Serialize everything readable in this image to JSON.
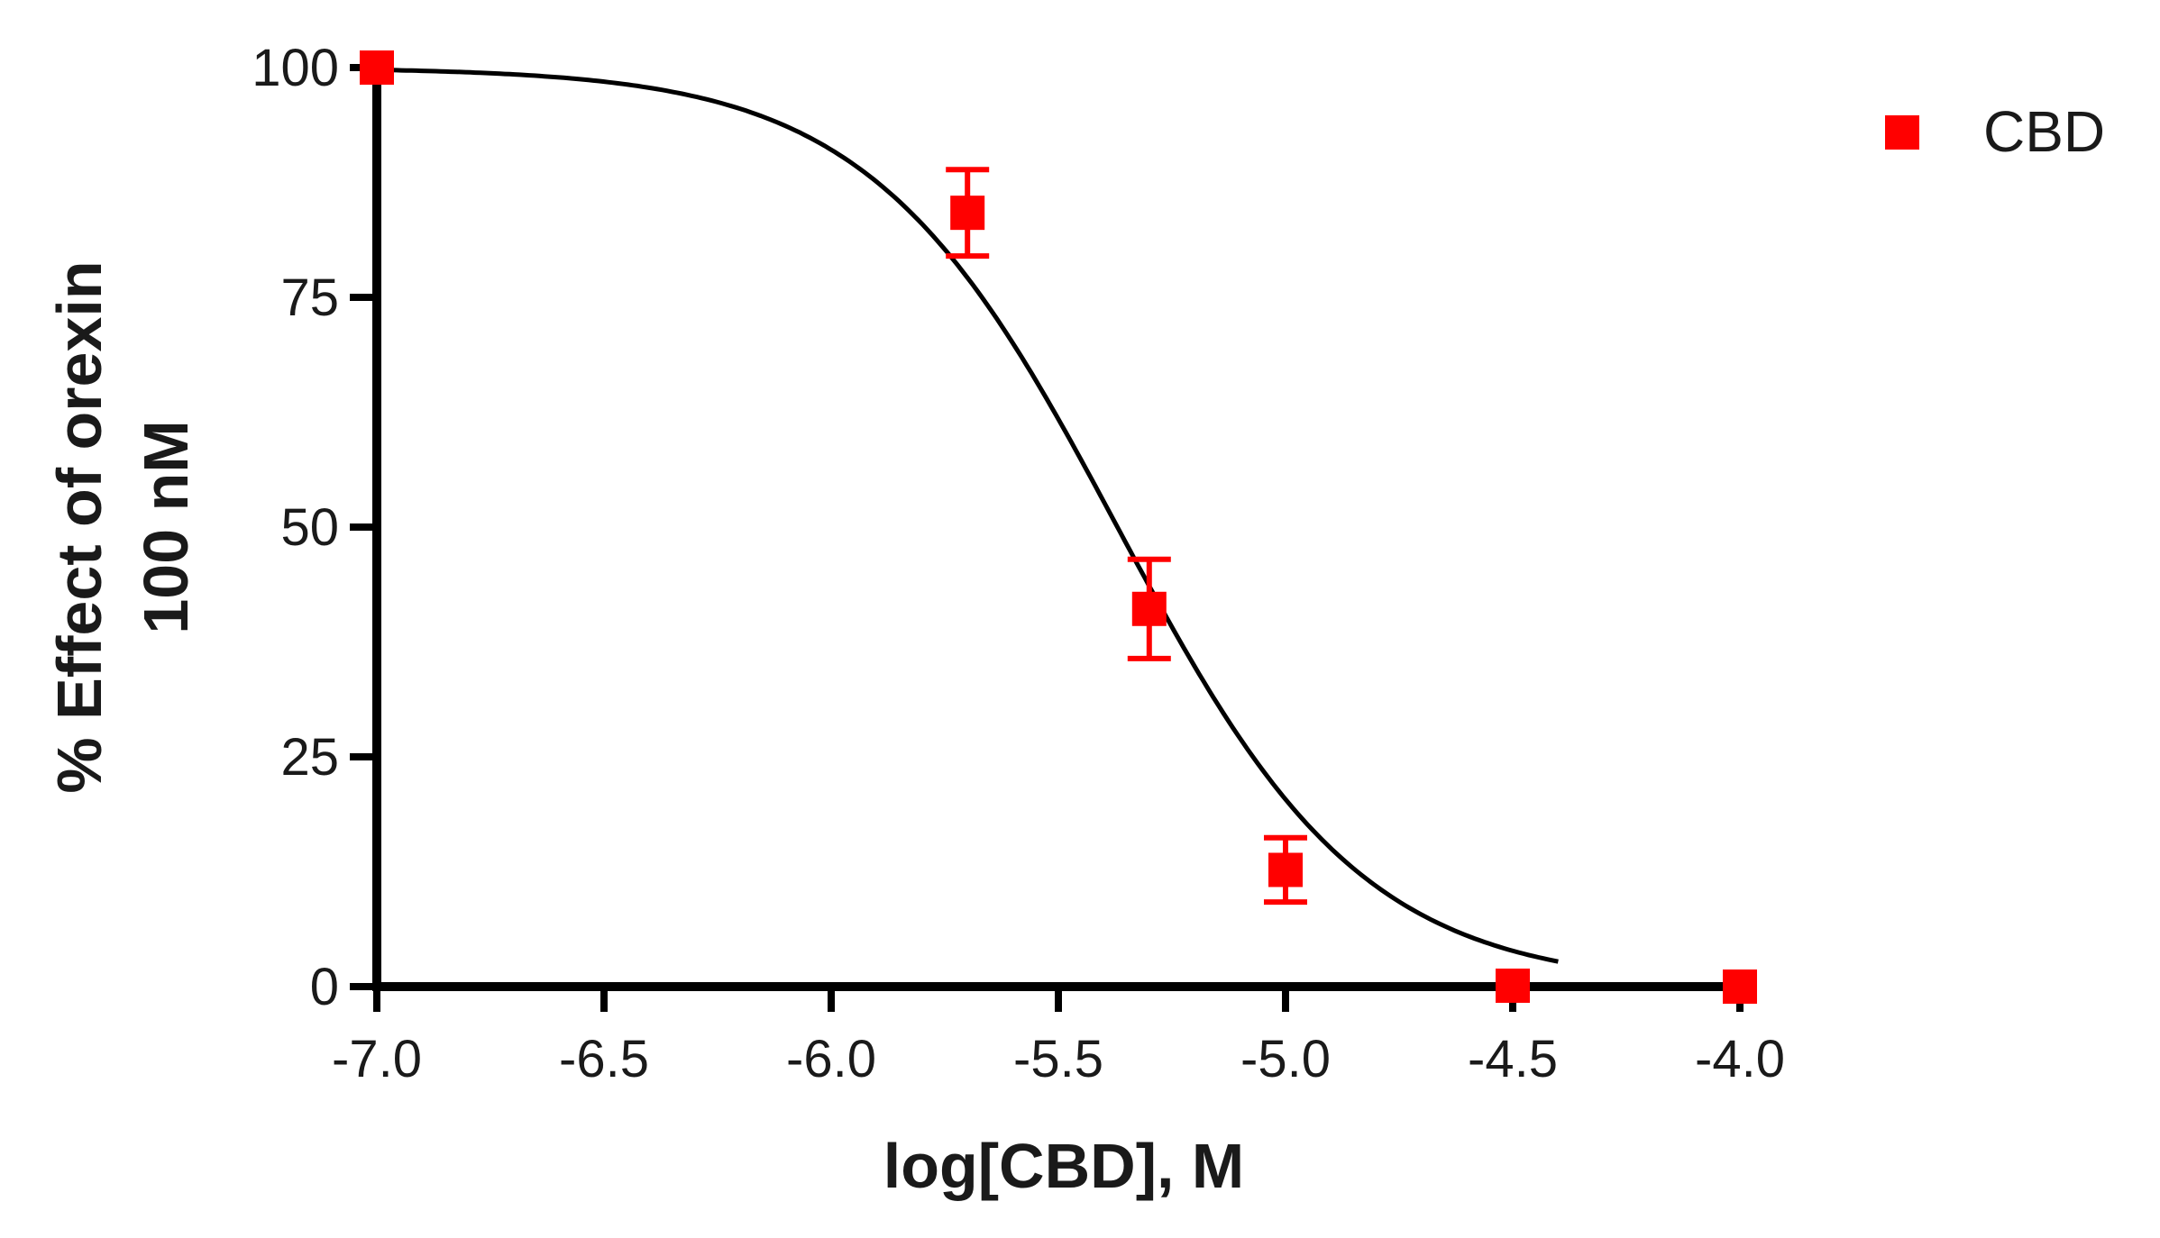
{
  "chart_data": {
    "type": "scatter",
    "xlabel": "log[CBD], M",
    "ylabel_lines": [
      "% Effect of orexin",
      "100 nM"
    ],
    "xlim": [
      -7.0,
      -4.0
    ],
    "ylim": [
      0,
      100
    ],
    "x_ticks": [
      -7.0,
      -6.5,
      -6.0,
      -5.5,
      -5.0,
      -4.5,
      -4.0
    ],
    "x_tick_labels": [
      "-7.0",
      "-6.5",
      "-6.0",
      "-5.5",
      "-5.0",
      "-4.5",
      "-4.0"
    ],
    "y_ticks": [
      0,
      25,
      50,
      75,
      100
    ],
    "y_tick_labels": [
      "0",
      "25",
      "50",
      "75",
      "100"
    ],
    "legend_position": "top-right",
    "series": [
      {
        "name": "CBD",
        "color": "#ff0000",
        "marker": "square",
        "x": [
          -7.0,
          -5.7,
          -5.3,
          -5.0,
          -4.5,
          -4.0
        ],
        "y": [
          100,
          84.2,
          41.1,
          12.7,
          0.1,
          0
        ],
        "error": [
          0,
          4.7,
          5.4,
          3.5,
          0,
          0
        ]
      }
    ],
    "fit_curve": {
      "model": "sigmoidal dose-response",
      "color": "#000000",
      "top": 100,
      "bottom": 0,
      "logIC50": -5.37,
      "hill_slope": -1.6
    }
  }
}
